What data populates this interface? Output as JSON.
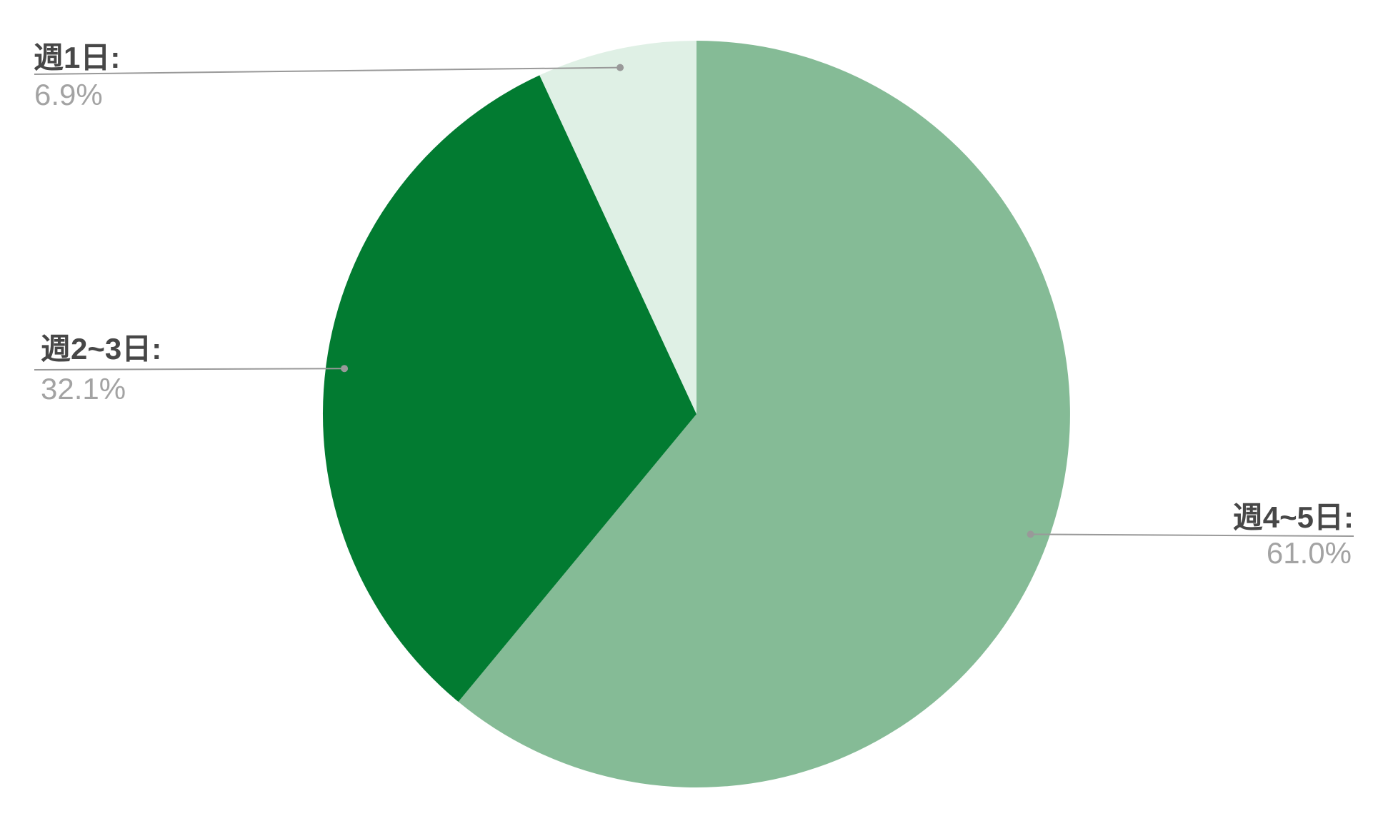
{
  "chart_data": {
    "type": "pie",
    "title": "",
    "categories": [
      "週4~5日",
      "週2~3日",
      "週1日"
    ],
    "values": [
      61.0,
      32.1,
      6.9
    ],
    "unit": "%",
    "start_angle_deg": 0,
    "direction": "clockwise",
    "legend_position": "none",
    "label_style": "outside-with-leader-lines",
    "slices": [
      {
        "category": "週4~5日",
        "label": "週4~5日:",
        "value": 61.0,
        "value_label": "61.0%",
        "color": "#85BB96"
      },
      {
        "category": "週2~3日",
        "label": "週2~3日:",
        "value": 32.1,
        "value_label": "32.1%",
        "color": "#027B31"
      },
      {
        "category": "週1日",
        "label": "週1日:",
        "value": 6.9,
        "value_label": "6.9%",
        "color": "#DFF0E5"
      }
    ]
  },
  "style": {
    "background": "#FFFFFF",
    "slice_label_color": "#474747",
    "value_label_color": "#A3A3A3",
    "leader_line_color": "#999999"
  }
}
